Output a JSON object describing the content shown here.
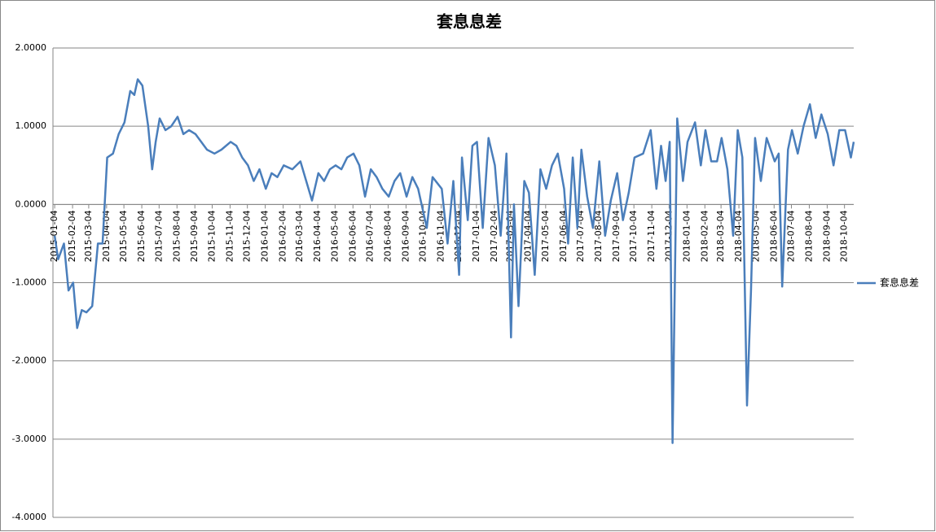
{
  "chart_data": {
    "type": "line",
    "title": "套息息差",
    "x": [
      "2015-01-04",
      "2015-01-10",
      "2015-01-20",
      "2015-01-28",
      "2015-02-05",
      "2015-02-12",
      "2015-02-20",
      "2015-02-28",
      "2015-03-10",
      "2015-03-20",
      "2015-03-28",
      "2015-04-05",
      "2015-04-15",
      "2015-04-25",
      "2015-05-05",
      "2015-05-15",
      "2015-05-22",
      "2015-05-28",
      "2015-06-05",
      "2015-06-15",
      "2015-06-22",
      "2015-06-28",
      "2015-07-05",
      "2015-07-15",
      "2015-07-25",
      "2015-08-05",
      "2015-08-15",
      "2015-08-25",
      "2015-09-05",
      "2015-09-15",
      "2015-09-25",
      "2015-10-08",
      "2015-10-20",
      "2015-11-05",
      "2015-11-15",
      "2015-11-25",
      "2015-12-05",
      "2015-12-15",
      "2015-12-25",
      "2016-01-05",
      "2016-01-15",
      "2016-01-25",
      "2016-02-05",
      "2016-02-20",
      "2016-03-05",
      "2016-03-15",
      "2016-03-25",
      "2016-04-05",
      "2016-04-15",
      "2016-04-25",
      "2016-05-05",
      "2016-05-15",
      "2016-05-25",
      "2016-06-05",
      "2016-06-15",
      "2016-06-25",
      "2016-07-05",
      "2016-07-15",
      "2016-07-25",
      "2016-08-05",
      "2016-08-15",
      "2016-08-25",
      "2016-09-05",
      "2016-09-15",
      "2016-09-25",
      "2016-10-10",
      "2016-10-20",
      "2016-11-05",
      "2016-11-15",
      "2016-11-25",
      "2016-12-05",
      "2016-12-10",
      "2016-12-20",
      "2016-12-28",
      "2017-01-05",
      "2017-01-15",
      "2017-01-25",
      "2017-02-05",
      "2017-02-15",
      "2017-02-25",
      "2017-03-05",
      "2017-03-10",
      "2017-03-18",
      "2017-03-28",
      "2017-04-05",
      "2017-04-15",
      "2017-04-25",
      "2017-05-05",
      "2017-05-15",
      "2017-05-25",
      "2017-06-05",
      "2017-06-12",
      "2017-06-20",
      "2017-06-28",
      "2017-07-05",
      "2017-07-15",
      "2017-07-25",
      "2017-08-05",
      "2017-08-15",
      "2017-08-25",
      "2017-09-05",
      "2017-09-15",
      "2017-09-25",
      "2017-10-05",
      "2017-10-20",
      "2017-11-02",
      "2017-11-12",
      "2017-11-20",
      "2017-11-28",
      "2017-12-05",
      "2017-12-10",
      "2017-12-18",
      "2017-12-28",
      "2018-01-05",
      "2018-01-18",
      "2018-01-28",
      "2018-02-05",
      "2018-02-15",
      "2018-02-25",
      "2018-03-05",
      "2018-03-15",
      "2018-03-25",
      "2018-04-02",
      "2018-04-10",
      "2018-04-18",
      "2018-04-25",
      "2018-05-02",
      "2018-05-12",
      "2018-05-22",
      "2018-06-05",
      "2018-06-12",
      "2018-06-18",
      "2018-06-28",
      "2018-07-05",
      "2018-07-15",
      "2018-07-25",
      "2018-08-05",
      "2018-08-15",
      "2018-08-25",
      "2018-09-05",
      "2018-09-15",
      "2018-09-25",
      "2018-10-05",
      "2018-10-15",
      "2018-10-20"
    ],
    "series": [
      {
        "name": "套息息差",
        "color": "#4a7ebb",
        "values": [
          -0.4,
          -0.7,
          -0.5,
          -1.1,
          -1.0,
          -1.58,
          -1.35,
          -1.38,
          -1.3,
          -0.5,
          -0.5,
          0.6,
          0.65,
          0.9,
          1.05,
          1.45,
          1.4,
          1.6,
          1.52,
          1.0,
          0.45,
          0.8,
          1.1,
          0.95,
          1.0,
          1.12,
          0.9,
          0.95,
          0.9,
          0.8,
          0.7,
          0.65,
          0.7,
          0.8,
          0.75,
          0.6,
          0.5,
          0.3,
          0.45,
          0.2,
          0.4,
          0.35,
          0.5,
          0.45,
          0.55,
          0.3,
          0.05,
          0.4,
          0.3,
          0.45,
          0.5,
          0.45,
          0.6,
          0.65,
          0.5,
          0.1,
          0.45,
          0.35,
          0.2,
          0.1,
          0.3,
          0.4,
          0.1,
          0.35,
          0.2,
          -0.3,
          0.35,
          0.2,
          -0.5,
          0.3,
          -0.9,
          0.6,
          -0.2,
          0.75,
          0.8,
          -0.3,
          0.85,
          0.5,
          -0.4,
          0.65,
          -1.7,
          0.0,
          -1.3,
          0.3,
          0.15,
          -0.9,
          0.45,
          0.2,
          0.5,
          0.65,
          0.2,
          -0.5,
          0.6,
          -0.3,
          0.7,
          0.1,
          -0.3,
          0.55,
          -0.4,
          0.05,
          0.4,
          -0.2,
          0.15,
          0.6,
          0.65,
          0.95,
          0.2,
          0.75,
          0.3,
          0.8,
          -3.05,
          1.1,
          0.3,
          0.8,
          1.05,
          0.5,
          0.95,
          0.55,
          0.55,
          0.85,
          0.45,
          -0.4,
          0.95,
          0.6,
          -2.57,
          -1.1,
          0.85,
          0.3,
          0.85,
          0.55,
          0.65,
          -1.05,
          0.7,
          0.95,
          0.65,
          1.0,
          1.28,
          0.85,
          1.15,
          0.9,
          0.5,
          0.95,
          0.95,
          0.6,
          0.8
        ]
      }
    ],
    "xlim": [
      "2015-01-01",
      "2018-10-20"
    ],
    "xticks": [
      "2015-01-04",
      "2015-02-04",
      "2015-03-04",
      "2015-04-04",
      "2015-05-04",
      "2015-06-04",
      "2015-07-04",
      "2015-08-04",
      "2015-09-04",
      "2015-10-04",
      "2015-11-04",
      "2015-12-04",
      "2016-01-04",
      "2016-02-04",
      "2016-03-04",
      "2016-04-04",
      "2016-05-04",
      "2016-06-04",
      "2016-07-04",
      "2016-08-04",
      "2016-09-04",
      "2016-10-04",
      "2016-11-04",
      "2016-12-04",
      "2017-01-04",
      "2017-02-04",
      "2017-03-04",
      "2017-04-04",
      "2017-05-04",
      "2017-06-04",
      "2017-07-04",
      "2017-08-04",
      "2017-09-04",
      "2017-10-04",
      "2017-11-04",
      "2017-12-04",
      "2018-01-04",
      "2018-02-04",
      "2018-03-04",
      "2018-04-04",
      "2018-05-04",
      "2018-06-04",
      "2018-07-04",
      "2018-08-04",
      "2018-09-04",
      "2018-10-04"
    ],
    "ylim": [
      -4,
      2
    ],
    "yticks": [
      {
        "value": -4,
        "label": "-4.0000"
      },
      {
        "value": -3,
        "label": "-3.0000"
      },
      {
        "value": -2,
        "label": "-2.0000"
      },
      {
        "value": -1,
        "label": "-1.0000"
      },
      {
        "value": 0,
        "label": "0.0000"
      },
      {
        "value": 1,
        "label": "1.0000"
      },
      {
        "value": 2,
        "label": "2.0000"
      }
    ],
    "grid": true,
    "legend": "right"
  }
}
